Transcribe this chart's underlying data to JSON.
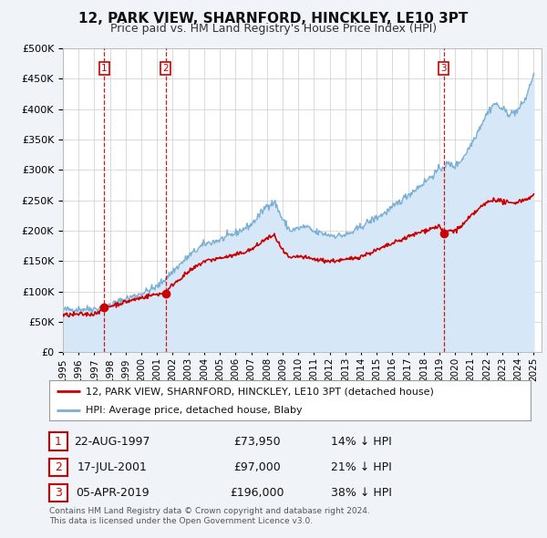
{
  "title": "12, PARK VIEW, SHARNFORD, HINCKLEY, LE10 3PT",
  "subtitle": "Price paid vs. HM Land Registry's House Price Index (HPI)",
  "ylim": [
    0,
    500000
  ],
  "yticks": [
    0,
    50000,
    100000,
    150000,
    200000,
    250000,
    300000,
    350000,
    400000,
    450000,
    500000
  ],
  "xlim_start": 1995.0,
  "xlim_end": 2025.5,
  "sale_dates": [
    1997.64,
    2001.54,
    2019.26
  ],
  "sale_prices": [
    73950,
    97000,
    196000
  ],
  "sale_labels": [
    "1",
    "2",
    "3"
  ],
  "line_color_property": "#cc0000",
  "line_color_hpi": "#7bafd4",
  "hpi_fill_color": "#d6e8f7",
  "legend_property": "12, PARK VIEW, SHARNFORD, HINCKLEY, LE10 3PT (detached house)",
  "legend_hpi": "HPI: Average price, detached house, Blaby",
  "table_entries": [
    {
      "label": "1",
      "date": "22-AUG-1997",
      "price": "£73,950",
      "pct": "14% ↓ HPI"
    },
    {
      "label": "2",
      "date": "17-JUL-2001",
      "price": "£97,000",
      "pct": "21% ↓ HPI"
    },
    {
      "label": "3",
      "date": "05-APR-2019",
      "price": "£196,000",
      "pct": "38% ↓ HPI"
    }
  ],
  "footer": "Contains HM Land Registry data © Crown copyright and database right 2024.\nThis data is licensed under the Open Government Licence v3.0.",
  "background_color": "#f0f4f8",
  "plot_bg_color": "#ffffff",
  "grid_color": "#cccccc",
  "title_fontsize": 11,
  "subtitle_fontsize": 9,
  "axis_label_fontsize": 8,
  "legend_fontsize": 8,
  "table_fontsize": 9,
  "footer_fontsize": 6.5,
  "hpi_waypoints": [
    [
      1995.0,
      70000
    ],
    [
      1996.0,
      71000
    ],
    [
      1997.0,
      72000
    ],
    [
      1997.5,
      73000
    ],
    [
      1998.0,
      78000
    ],
    [
      1999.0,
      88000
    ],
    [
      2000.0,
      97000
    ],
    [
      2001.0,
      108000
    ],
    [
      2002.0,
      133000
    ],
    [
      2003.0,
      158000
    ],
    [
      2004.0,
      178000
    ],
    [
      2005.0,
      185000
    ],
    [
      2006.0,
      196000
    ],
    [
      2007.0,
      210000
    ],
    [
      2007.5,
      225000
    ],
    [
      2008.0,
      242000
    ],
    [
      2008.5,
      247000
    ],
    [
      2009.0,
      218000
    ],
    [
      2009.5,
      200000
    ],
    [
      2010.0,
      204000
    ],
    [
      2010.5,
      207000
    ],
    [
      2011.0,
      198000
    ],
    [
      2011.5,
      196000
    ],
    [
      2012.0,
      193000
    ],
    [
      2012.5,
      192000
    ],
    [
      2013.0,
      193000
    ],
    [
      2013.5,
      198000
    ],
    [
      2014.0,
      207000
    ],
    [
      2014.5,
      215000
    ],
    [
      2015.0,
      222000
    ],
    [
      2015.5,
      229000
    ],
    [
      2016.0,
      238000
    ],
    [
      2016.5,
      249000
    ],
    [
      2017.0,
      259000
    ],
    [
      2017.5,
      269000
    ],
    [
      2018.0,
      279000
    ],
    [
      2018.5,
      290000
    ],
    [
      2019.0,
      301000
    ],
    [
      2019.5,
      310000
    ],
    [
      2020.0,
      306000
    ],
    [
      2020.5,
      320000
    ],
    [
      2021.0,
      342000
    ],
    [
      2021.5,
      367000
    ],
    [
      2022.0,
      392000
    ],
    [
      2022.5,
      410000
    ],
    [
      2023.0,
      400000
    ],
    [
      2023.5,
      392000
    ],
    [
      2024.0,
      398000
    ],
    [
      2024.5,
      418000
    ],
    [
      2025.0,
      458000
    ]
  ],
  "prop_waypoints": [
    [
      1995.0,
      61000
    ],
    [
      1996.0,
      62500
    ],
    [
      1997.0,
      63000
    ],
    [
      1997.64,
      73950
    ],
    [
      1998.0,
      76000
    ],
    [
      1999.0,
      83000
    ],
    [
      2000.0,
      90000
    ],
    [
      2001.0,
      96000
    ],
    [
      2001.54,
      97000
    ],
    [
      2002.0,
      112000
    ],
    [
      2003.0,
      132000
    ],
    [
      2004.0,
      150000
    ],
    [
      2005.0,
      155000
    ],
    [
      2006.0,
      160000
    ],
    [
      2007.0,
      169000
    ],
    [
      2007.5,
      178000
    ],
    [
      2008.0,
      188000
    ],
    [
      2008.5,
      192000
    ],
    [
      2009.0,
      167000
    ],
    [
      2009.5,
      154000
    ],
    [
      2010.0,
      158000
    ],
    [
      2011.0,
      153000
    ],
    [
      2012.0,
      150000
    ],
    [
      2013.0,
      152000
    ],
    [
      2014.0,
      158000
    ],
    [
      2015.0,
      168000
    ],
    [
      2016.0,
      179000
    ],
    [
      2017.0,
      190000
    ],
    [
      2018.0,
      200000
    ],
    [
      2019.0,
      208000
    ],
    [
      2019.26,
      196000
    ],
    [
      2019.5,
      200000
    ],
    [
      2020.0,
      200000
    ],
    [
      2020.5,
      210000
    ],
    [
      2021.0,
      224000
    ],
    [
      2021.5,
      236000
    ],
    [
      2022.0,
      246000
    ],
    [
      2022.5,
      252000
    ],
    [
      2023.0,
      248000
    ],
    [
      2023.5,
      245000
    ],
    [
      2024.0,
      248000
    ],
    [
      2024.5,
      252000
    ],
    [
      2025.0,
      258000
    ]
  ]
}
